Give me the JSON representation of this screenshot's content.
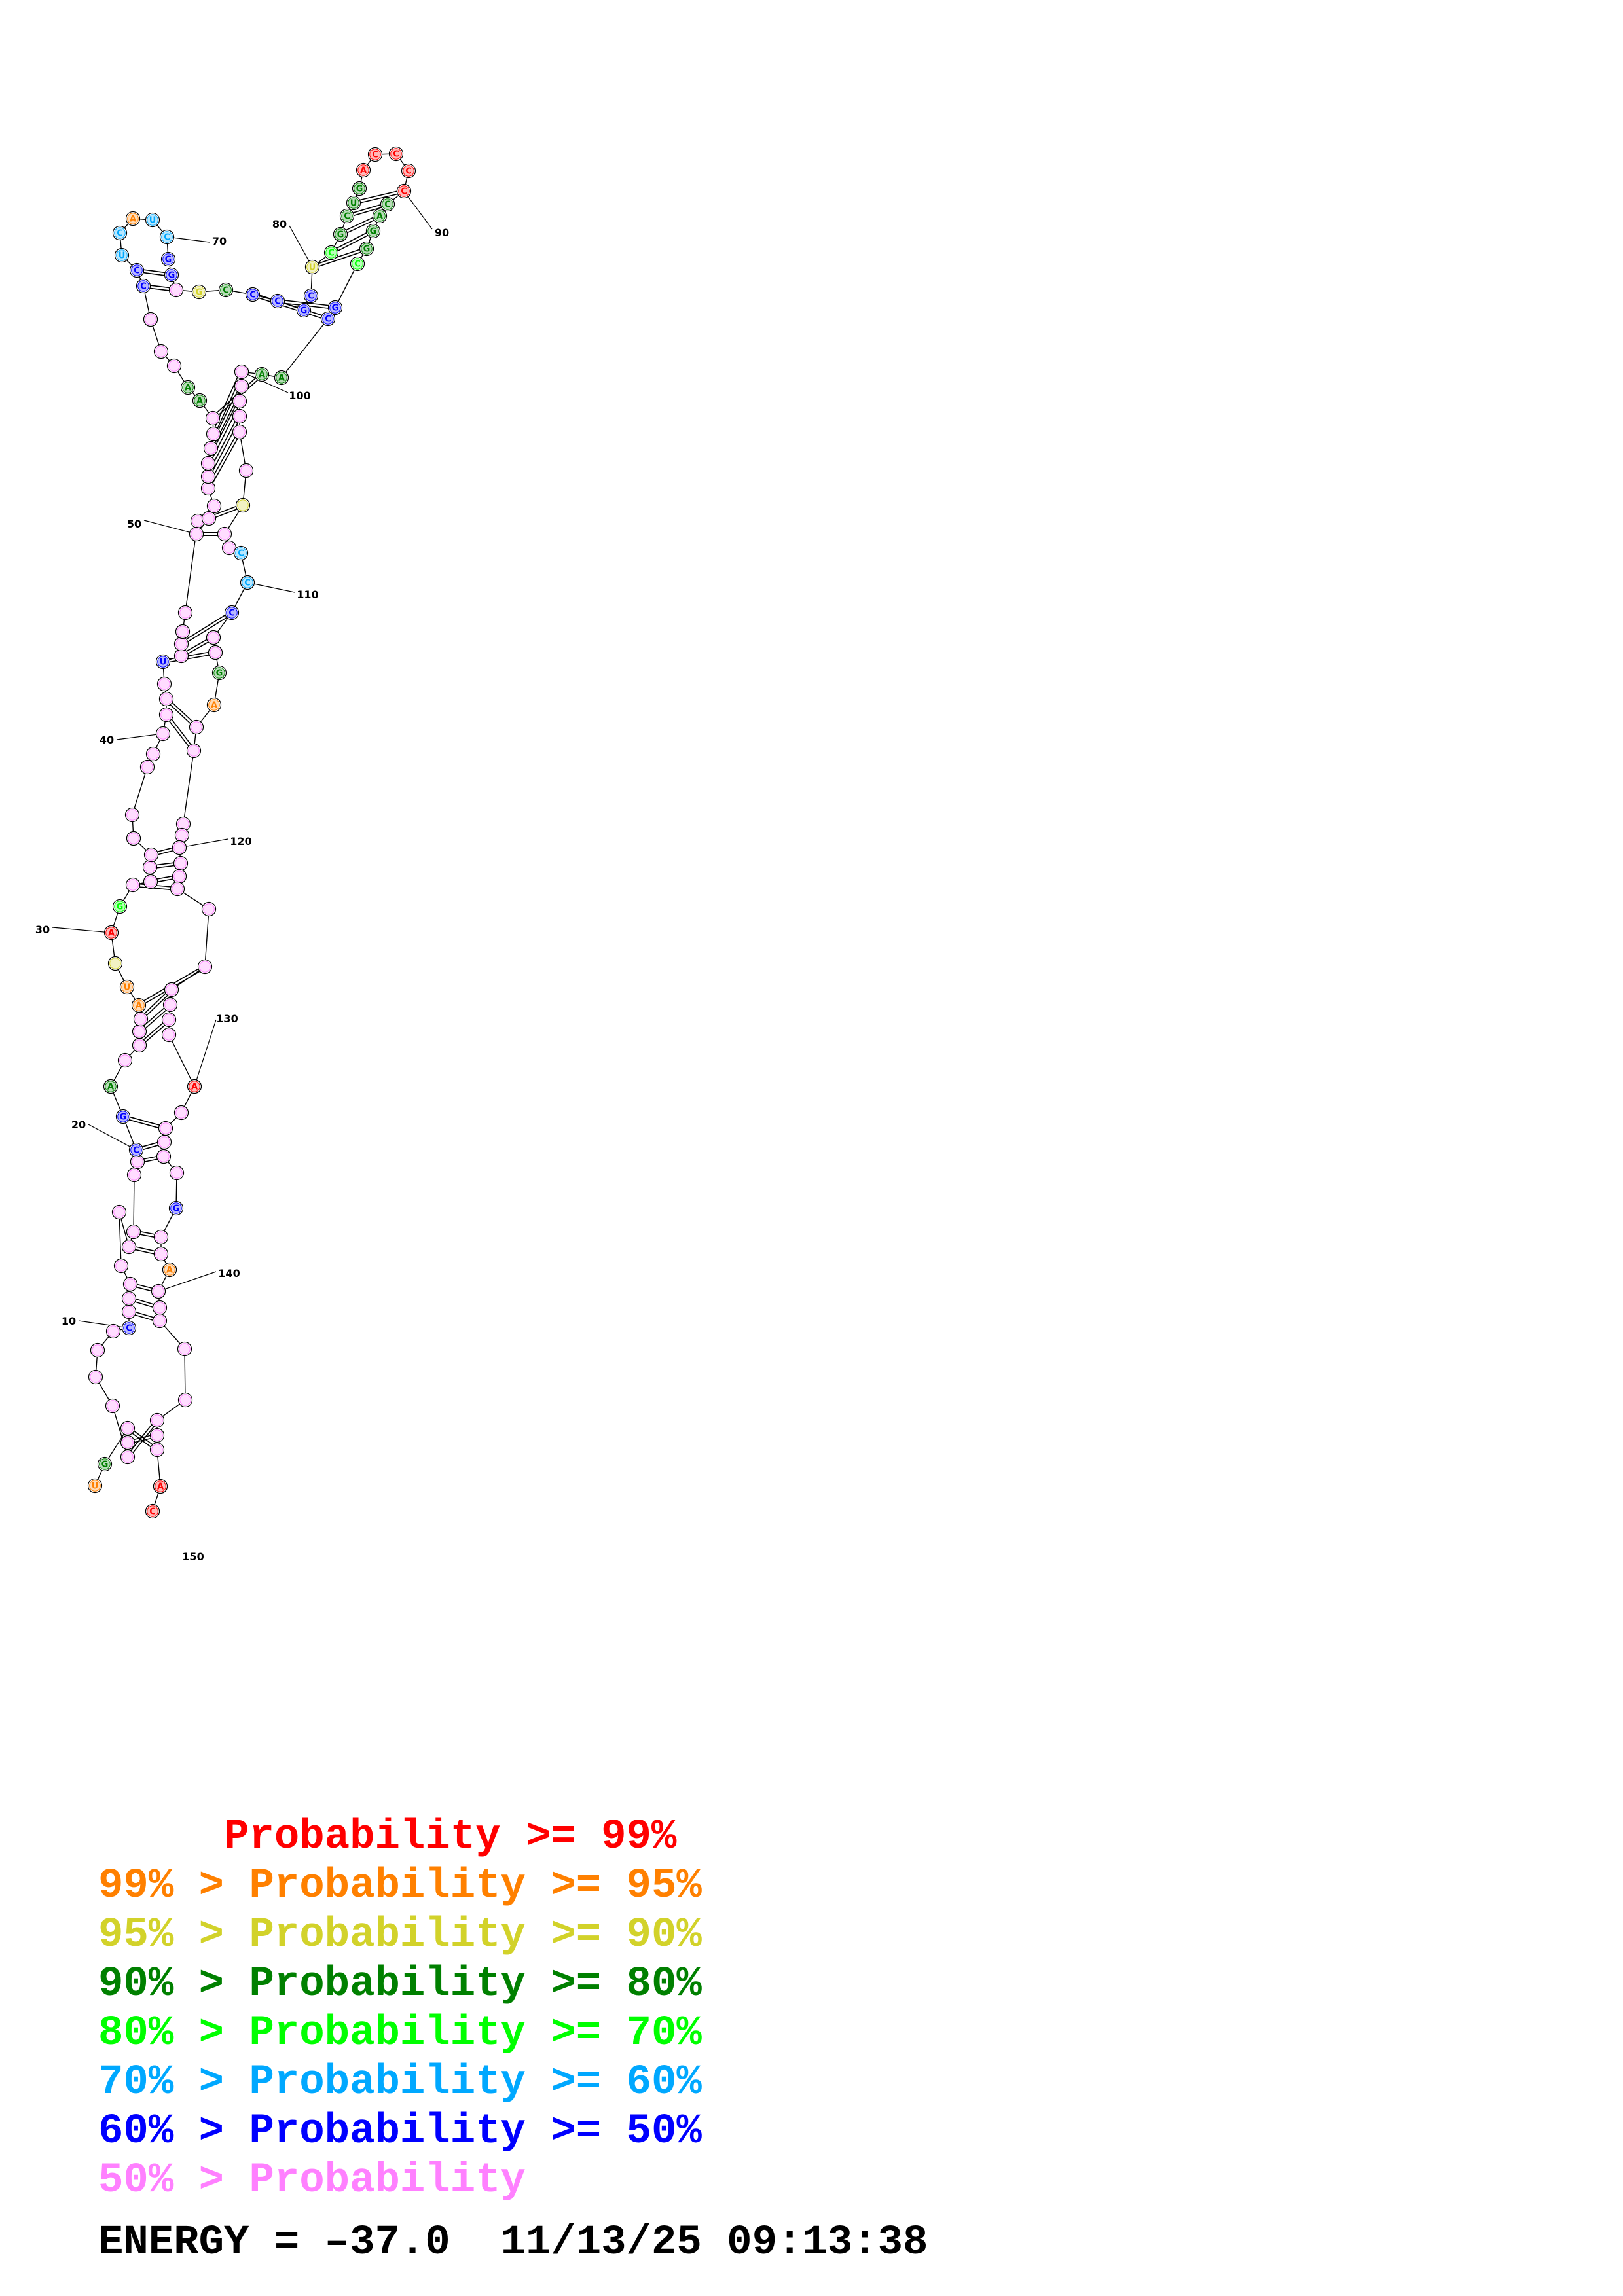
{
  "structure": {
    "nucleotides": [
      {
        "n": 1,
        "b": "U",
        "c": "orange"
      },
      {
        "n": 2,
        "b": "G",
        "c": "green"
      },
      {
        "n": 3,
        "b": "",
        "c": "pink"
      },
      {
        "n": 4,
        "b": "",
        "c": "pink"
      },
      {
        "n": 5,
        "b": "",
        "c": "pink"
      },
      {
        "n": 6,
        "b": "",
        "c": "pink"
      },
      {
        "n": 7,
        "b": "",
        "c": "pink"
      },
      {
        "n": 8,
        "b": "",
        "c": "pink"
      },
      {
        "n": 9,
        "b": "",
        "c": "pink"
      },
      {
        "n": 10,
        "b": "C",
        "c": "blue"
      },
      {
        "n": 11,
        "b": "",
        "c": "pink"
      },
      {
        "n": 12,
        "b": "",
        "c": "pink"
      },
      {
        "n": 13,
        "b": "",
        "c": "pink"
      },
      {
        "n": 14,
        "b": "",
        "c": "pink"
      },
      {
        "n": 15,
        "b": "",
        "c": "pink"
      },
      {
        "n": 16,
        "b": "",
        "c": "pink"
      },
      {
        "n": 17,
        "b": "",
        "c": "pink"
      },
      {
        "n": 18,
        "b": "",
        "c": "pink"
      },
      {
        "n": 19,
        "b": "",
        "c": "pink"
      },
      {
        "n": 20,
        "b": "C",
        "c": "blue"
      },
      {
        "n": 21,
        "b": "G",
        "c": "blue"
      },
      {
        "n": 22,
        "b": "A",
        "c": "green"
      },
      {
        "n": 23,
        "b": "",
        "c": "pink"
      },
      {
        "n": 24,
        "b": "",
        "c": "pink"
      },
      {
        "n": 25,
        "b": "",
        "c": "pink"
      },
      {
        "n": 26,
        "b": "",
        "c": "pink"
      },
      {
        "n": 27,
        "b": "A",
        "c": "orange"
      },
      {
        "n": 28,
        "b": "U",
        "c": "orange"
      },
      {
        "n": 29,
        "b": "",
        "c": "yellow"
      },
      {
        "n": 30,
        "b": "A",
        "c": "red"
      },
      {
        "n": 31,
        "b": "G",
        "c": "lgreen"
      },
      {
        "n": 32,
        "b": "",
        "c": "pink"
      },
      {
        "n": 33,
        "b": "",
        "c": "pink"
      },
      {
        "n": 34,
        "b": "",
        "c": "pink"
      },
      {
        "n": 35,
        "b": "",
        "c": "pink"
      },
      {
        "n": 36,
        "b": "",
        "c": "pink"
      },
      {
        "n": 37,
        "b": "",
        "c": "pink"
      },
      {
        "n": 38,
        "b": "",
        "c": "pink"
      },
      {
        "n": 39,
        "b": "",
        "c": "pink"
      },
      {
        "n": 40,
        "b": "",
        "c": "pink"
      },
      {
        "n": 41,
        "b": "",
        "c": "pink"
      },
      {
        "n": 42,
        "b": "",
        "c": "pink"
      },
      {
        "n": 43,
        "b": "",
        "c": "pink"
      },
      {
        "n": 44,
        "b": "U",
        "c": "blue"
      },
      {
        "n": 45,
        "b": "",
        "c": "pink"
      },
      {
        "n": 46,
        "b": "",
        "c": "pink"
      },
      {
        "n": 47,
        "b": "",
        "c": "pink"
      },
      {
        "n": 48,
        "b": "",
        "c": "pink"
      },
      {
        "n": 49,
        "b": "",
        "c": "pink"
      },
      {
        "n": 50,
        "b": "",
        "c": "pink"
      },
      {
        "n": 51,
        "b": "",
        "c": "pink"
      },
      {
        "n": 52,
        "b": "",
        "c": "pink"
      },
      {
        "n": 53,
        "b": "",
        "c": "pink"
      },
      {
        "n": 54,
        "b": "",
        "c": "pink"
      },
      {
        "n": 55,
        "b": "",
        "c": "pink"
      },
      {
        "n": 56,
        "b": "",
        "c": "pink"
      },
      {
        "n": 57,
        "b": "",
        "c": "pink"
      },
      {
        "n": 58,
        "b": "",
        "c": "pink"
      },
      {
        "n": 59,
        "b": "A",
        "c": "green"
      },
      {
        "n": 60,
        "b": "A",
        "c": "green"
      },
      {
        "n": 61,
        "b": "",
        "c": "pink"
      },
      {
        "n": 62,
        "b": "",
        "c": "pink"
      },
      {
        "n": 63,
        "b": "",
        "c": "pink"
      },
      {
        "n": 64,
        "b": "C",
        "c": "blue"
      },
      {
        "n": 65,
        "b": "C",
        "c": "blue"
      },
      {
        "n": 66,
        "b": "U",
        "c": "cyan"
      },
      {
        "n": 67,
        "b": "C",
        "c": "cyan"
      },
      {
        "n": 68,
        "b": "A",
        "c": "orange"
      },
      {
        "n": 69,
        "b": "U",
        "c": "cyan"
      },
      {
        "n": 70,
        "b": "C",
        "c": "cyan"
      },
      {
        "n": 71,
        "b": "G",
        "c": "blue"
      },
      {
        "n": 72,
        "b": "G",
        "c": "blue"
      },
      {
        "n": 73,
        "b": "",
        "c": "pink"
      },
      {
        "n": 74,
        "b": "G",
        "c": "yellow"
      },
      {
        "n": 75,
        "b": "C",
        "c": "green"
      },
      {
        "n": 76,
        "b": "C",
        "c": "blue"
      },
      {
        "n": 77,
        "b": "C",
        "c": "blue"
      },
      {
        "n": 78,
        "b": "G",
        "c": "blue"
      },
      {
        "n": 79,
        "b": "C",
        "c": "blue"
      },
      {
        "n": 80,
        "b": "U",
        "c": "yellow"
      },
      {
        "n": 81,
        "b": "C",
        "c": "lgreen"
      },
      {
        "n": 82,
        "b": "G",
        "c": "green"
      },
      {
        "n": 83,
        "b": "C",
        "c": "green"
      },
      {
        "n": 84,
        "b": "U",
        "c": "green"
      },
      {
        "n": 85,
        "b": "G",
        "c": "green"
      },
      {
        "n": 86,
        "b": "A",
        "c": "red"
      },
      {
        "n": 87,
        "b": "C",
        "c": "red"
      },
      {
        "n": 88,
        "b": "C",
        "c": "red"
      },
      {
        "n": 89,
        "b": "C",
        "c": "red"
      },
      {
        "n": 90,
        "b": "C",
        "c": "red"
      },
      {
        "n": 91,
        "b": "C",
        "c": "green"
      },
      {
        "n": 92,
        "b": "A",
        "c": "green"
      },
      {
        "n": 93,
        "b": "G",
        "c": "green"
      },
      {
        "n": 94,
        "b": "G",
        "c": "green"
      },
      {
        "n": 95,
        "b": "C",
        "c": "lgreen"
      },
      {
        "n": 96,
        "b": "G",
        "c": "blue"
      },
      {
        "n": 97,
        "b": "C",
        "c": "blue"
      },
      {
        "n": 98,
        "b": "A",
        "c": "green"
      },
      {
        "n": 99,
        "b": "A",
        "c": "green"
      },
      {
        "n": 100,
        "b": "",
        "c": "pink"
      },
      {
        "n": 101,
        "b": "",
        "c": "pink"
      },
      {
        "n": 102,
        "b": "",
        "c": "pink"
      },
      {
        "n": 103,
        "b": "",
        "c": "pink"
      },
      {
        "n": 104,
        "b": "",
        "c": "pink"
      },
      {
        "n": 105,
        "b": "",
        "c": "pink"
      },
      {
        "n": 106,
        "b": "",
        "c": "yellow"
      },
      {
        "n": 107,
        "b": "",
        "c": "pink"
      },
      {
        "n": 108,
        "b": "",
        "c": "pink"
      },
      {
        "n": 109,
        "b": "C",
        "c": "cyan"
      },
      {
        "n": 110,
        "b": "C",
        "c": "cyan"
      },
      {
        "n": 111,
        "b": "C",
        "c": "blue"
      },
      {
        "n": 112,
        "b": "",
        "c": "pink"
      },
      {
        "n": 113,
        "b": "",
        "c": "pink"
      },
      {
        "n": 114,
        "b": "G",
        "c": "green"
      },
      {
        "n": 115,
        "b": "A",
        "c": "orange"
      },
      {
        "n": 116,
        "b": "",
        "c": "pink"
      },
      {
        "n": 117,
        "b": "",
        "c": "pink"
      },
      {
        "n": 118,
        "b": "",
        "c": "pink"
      },
      {
        "n": 119,
        "b": "",
        "c": "pink"
      },
      {
        "n": 120,
        "b": "",
        "c": "pink"
      },
      {
        "n": 121,
        "b": "",
        "c": "pink"
      },
      {
        "n": 122,
        "b": "",
        "c": "pink"
      },
      {
        "n": 123,
        "b": "",
        "c": "pink"
      },
      {
        "n": 124,
        "b": "",
        "c": "pink"
      },
      {
        "n": 125,
        "b": "",
        "c": "pink"
      },
      {
        "n": 126,
        "b": "",
        "c": "pink"
      },
      {
        "n": 127,
        "b": "",
        "c": "pink"
      },
      {
        "n": 128,
        "b": "",
        "c": "pink"
      },
      {
        "n": 129,
        "b": "",
        "c": "pink"
      },
      {
        "n": 130,
        "b": "A",
        "c": "red"
      },
      {
        "n": 131,
        "b": "",
        "c": "pink"
      },
      {
        "n": 132,
        "b": "",
        "c": "pink"
      },
      {
        "n": 133,
        "b": "",
        "c": "pink"
      },
      {
        "n": 134,
        "b": "",
        "c": "pink"
      },
      {
        "n": 135,
        "b": "",
        "c": "pink"
      },
      {
        "n": 136,
        "b": "G",
        "c": "blue"
      },
      {
        "n": 137,
        "b": "",
        "c": "pink"
      },
      {
        "n": 138,
        "b": "",
        "c": "pink"
      },
      {
        "n": 139,
        "b": "A",
        "c": "orange"
      },
      {
        "n": 140,
        "b": "",
        "c": "pink"
      },
      {
        "n": 141,
        "b": "",
        "c": "pink"
      },
      {
        "n": 142,
        "b": "",
        "c": "pink"
      },
      {
        "n": 143,
        "b": "",
        "c": "pink"
      },
      {
        "n": 144,
        "b": "",
        "c": "pink"
      },
      {
        "n": 145,
        "b": "",
        "c": "pink"
      },
      {
        "n": 146,
        "b": "",
        "c": "pink"
      },
      {
        "n": 147,
        "b": "",
        "c": "pink"
      },
      {
        "n": 148,
        "b": "A",
        "c": "red"
      },
      {
        "n": 149,
        "b": "C",
        "c": "red"
      }
    ],
    "pairs": [
      [
        3,
        147
      ],
      [
        4,
        146
      ],
      [
        5,
        145
      ],
      [
        11,
        142
      ],
      [
        12,
        141
      ],
      [
        13,
        140
      ],
      [
        16,
        138
      ],
      [
        17,
        137
      ],
      [
        19,
        134
      ],
      [
        20,
        133
      ],
      [
        21,
        132
      ],
      [
        24,
        128
      ],
      [
        25,
        127
      ],
      [
        26,
        126
      ],
      [
        27,
        125
      ],
      [
        32,
        123
      ],
      [
        33,
        122
      ],
      [
        34,
        121
      ],
      [
        35,
        120
      ],
      [
        41,
        117
      ],
      [
        42,
        116
      ],
      [
        44,
        113
      ],
      [
        45,
        112
      ],
      [
        46,
        111
      ],
      [
        50,
        107
      ],
      [
        51,
        106
      ],
      [
        53,
        104
      ],
      [
        54,
        103
      ],
      [
        55,
        102
      ],
      [
        56,
        101
      ],
      [
        57,
        100
      ],
      [
        58,
        99
      ],
      [
        64,
        73
      ],
      [
        65,
        72
      ],
      [
        76,
        97
      ],
      [
        77,
        96
      ],
      [
        80,
        94
      ],
      [
        81,
        93
      ],
      [
        82,
        92
      ],
      [
        83,
        91
      ],
      [
        84,
        90
      ]
    ],
    "number_labels": [
      "10",
      "20",
      "30",
      "40",
      "50",
      "70",
      "80",
      "90",
      "100",
      "110",
      "120",
      "130",
      "140",
      "150"
    ]
  },
  "legend": [
    {
      "prefix": "     ",
      "text": "Probability >= 99%",
      "color": "#ff0000"
    },
    {
      "prefix": "99% > ",
      "text": "Probability >= 95%",
      "color": "#ff8000"
    },
    {
      "prefix": "95% > ",
      "text": "Probability >= 90%",
      "color": "#d2d22a"
    },
    {
      "prefix": "90% > ",
      "text": "Probability >= 80%",
      "color": "#008000"
    },
    {
      "prefix": "80% > ",
      "text": "Probability >= 70%",
      "color": "#00ff00"
    },
    {
      "prefix": "70% > ",
      "text": "Probability >= 60%",
      "color": "#00a8ff"
    },
    {
      "prefix": "60% > ",
      "text": "Probability >= 50%",
      "color": "#0000ff"
    },
    {
      "prefix": "50% > ",
      "text": "Probability",
      "color": "#ff80ff"
    }
  ],
  "energy_line": "ENERGY = –37.0  11/13/25 09:13:38",
  "colors": {
    "red": "#ff0000",
    "orange": "#ff8000",
    "yellow": "#d2d22a",
    "green": "#008000",
    "lgreen": "#00ff00",
    "cyan": "#00a8ff",
    "blue": "#0000ff",
    "pink": "#ff80ff"
  }
}
